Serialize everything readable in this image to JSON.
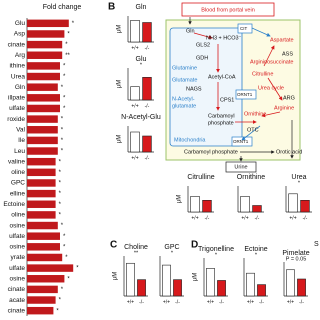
{
  "panel_labels": [
    "B",
    "C",
    "D"
  ],
  "texts": [
    "S"
  ],
  "diagram": {
    "labels": [
      "Blood from portal vein",
      "Gln",
      "GLS2",
      "NH3 + HCO3⁻",
      "GDH",
      "Glutamine",
      "Glutamate",
      "Acetyl-CoA",
      "NAGS",
      "N-Acetyl-",
      "glutamate",
      "CPS1",
      "Carbamoyl",
      "phosphate",
      "Mitochondria",
      "ORNT1",
      "OTC",
      "ORNT1",
      "Aspartate",
      "ASS",
      "Argininosuccinate",
      "Urea cycle",
      "Arginine",
      "ARG",
      "Ornithine",
      "Citrulline",
      "Carbamoyl phosphate",
      "Orotic acid",
      "Urine",
      "CIT"
    ]
  },
  "chart_data": [
    {
      "type": "hbar",
      "title": "Fold change",
      "color": "#c0191c",
      "xlim": [
        0,
        2.5
      ],
      "categories": [
        "Glu",
        "Asp",
        "cinate",
        "Arg",
        "ithine",
        "Urea",
        "Gln",
        "illpate",
        "ulfate",
        "roxide",
        "Val",
        "Ile",
        "Leu",
        "valine",
        "oline",
        "GPC",
        "elline",
        "Ectoine",
        "oline",
        "osine",
        "ulfate",
        "osine",
        "yrate",
        "ulfate",
        "osine",
        "cinate",
        "acate",
        "cinate"
      ],
      "values": [
        1.9,
        1.7,
        1.6,
        1.6,
        1.5,
        1.5,
        1.4,
        1.5,
        1.5,
        1.4,
        1.4,
        1.4,
        1.4,
        1.3,
        1.3,
        1.3,
        1.3,
        1.3,
        1.3,
        1.4,
        1.5,
        1.5,
        1.6,
        2.1,
        1.7,
        1.4,
        1.3,
        1.2
      ],
      "annotations": [
        "*",
        "*",
        "*",
        "**",
        "*",
        "*",
        "*",
        "*",
        "*",
        "*",
        "*",
        "*",
        "*",
        "*",
        "*",
        "*",
        "*",
        "*",
        "*",
        "*",
        "*",
        "*",
        "*",
        "*",
        "*",
        "*",
        "*",
        "*"
      ]
    },
    {
      "type": "bar",
      "title": "Gln",
      "ylabel": "μM",
      "categories": [
        "+/+",
        "-/-"
      ],
      "values": [
        1.0,
        0.9
      ],
      "ylim": [
        0,
        1.2
      ],
      "colors": [
        "#ffffff",
        "#d7191c"
      ]
    },
    {
      "type": "bar",
      "title": "Glu",
      "ylabel": "μM",
      "categories": [
        "+/+",
        "-/-"
      ],
      "values": [
        0.5,
        0.85
      ],
      "ylim": [
        0,
        1.2
      ],
      "colors": [
        "#ffffff",
        "#d7191c"
      ],
      "annotation": "*"
    },
    {
      "type": "bar",
      "title": "N-Acetyl-Glu",
      "ylabel": "μM",
      "categories": [
        "+/+",
        "-/-"
      ],
      "values": [
        1.0,
        0.8
      ],
      "ylim": [
        0,
        1.3
      ],
      "colors": [
        "#ffffff",
        "#d7191c"
      ]
    },
    {
      "type": "bar",
      "title": "Citrulline",
      "ylabel": "μM",
      "categories": [
        "+/+",
        "-/-"
      ],
      "values": [
        0.6,
        0.45
      ],
      "ylim": [
        0,
        1.0
      ],
      "colors": [
        "#ffffff",
        "#d7191c"
      ]
    },
    {
      "type": "bar",
      "title": "Ornithine",
      "categories": [
        "+/+",
        "-/-"
      ],
      "values": [
        0.6,
        0.25
      ],
      "ylim": [
        0,
        1.0
      ],
      "colors": [
        "#ffffff",
        "#d7191c"
      ]
    },
    {
      "type": "bar",
      "title": "Urea",
      "categories": [
        "+/+",
        "-/-"
      ],
      "values": [
        0.7,
        0.45
      ],
      "ylim": [
        0,
        1.0
      ],
      "colors": [
        "#ffffff",
        "#d7191c"
      ],
      "annotation": "*"
    },
    {
      "type": "bar",
      "title": "Choline",
      "ylabel": "μM",
      "categories": [
        "+/+",
        "-/-"
      ],
      "values": [
        0.9,
        0.45
      ],
      "ylim": [
        0,
        1.1
      ],
      "colors": [
        "#ffffff",
        "#d7191c"
      ],
      "annotation": "**"
    },
    {
      "type": "bar",
      "title": "GPC",
      "categories": [
        "+/+",
        "-/-"
      ],
      "values": [
        0.85,
        0.45
      ],
      "ylim": [
        0,
        1.1
      ],
      "colors": [
        "#ffffff",
        "#d7191c"
      ],
      "annotation": "*"
    },
    {
      "type": "bar",
      "title": "Trigonelline",
      "ylabel": "μM",
      "categories": [
        "+/+",
        "-/-"
      ],
      "values": [
        0.8,
        0.45
      ],
      "ylim": [
        0,
        1.1
      ],
      "colors": [
        "#ffffff",
        "#d7191c"
      ],
      "annotation": "*"
    },
    {
      "type": "bar",
      "title": "Ectoine",
      "categories": [
        "+/+",
        "-/-"
      ],
      "values": [
        0.6,
        0.3
      ],
      "ylim": [
        0,
        1.0
      ],
      "colors": [
        "#ffffff",
        "#d7191c"
      ],
      "annotation": "*"
    },
    {
      "type": "bar",
      "title": "Pimelate",
      "categories": [
        "+/+",
        "-/-"
      ],
      "values": [
        0.85,
        0.55
      ],
      "ylim": [
        0,
        1.1
      ],
      "colors": [
        "#ffffff",
        "#d7191c"
      ],
      "annotation": "P = 0.05"
    }
  ]
}
